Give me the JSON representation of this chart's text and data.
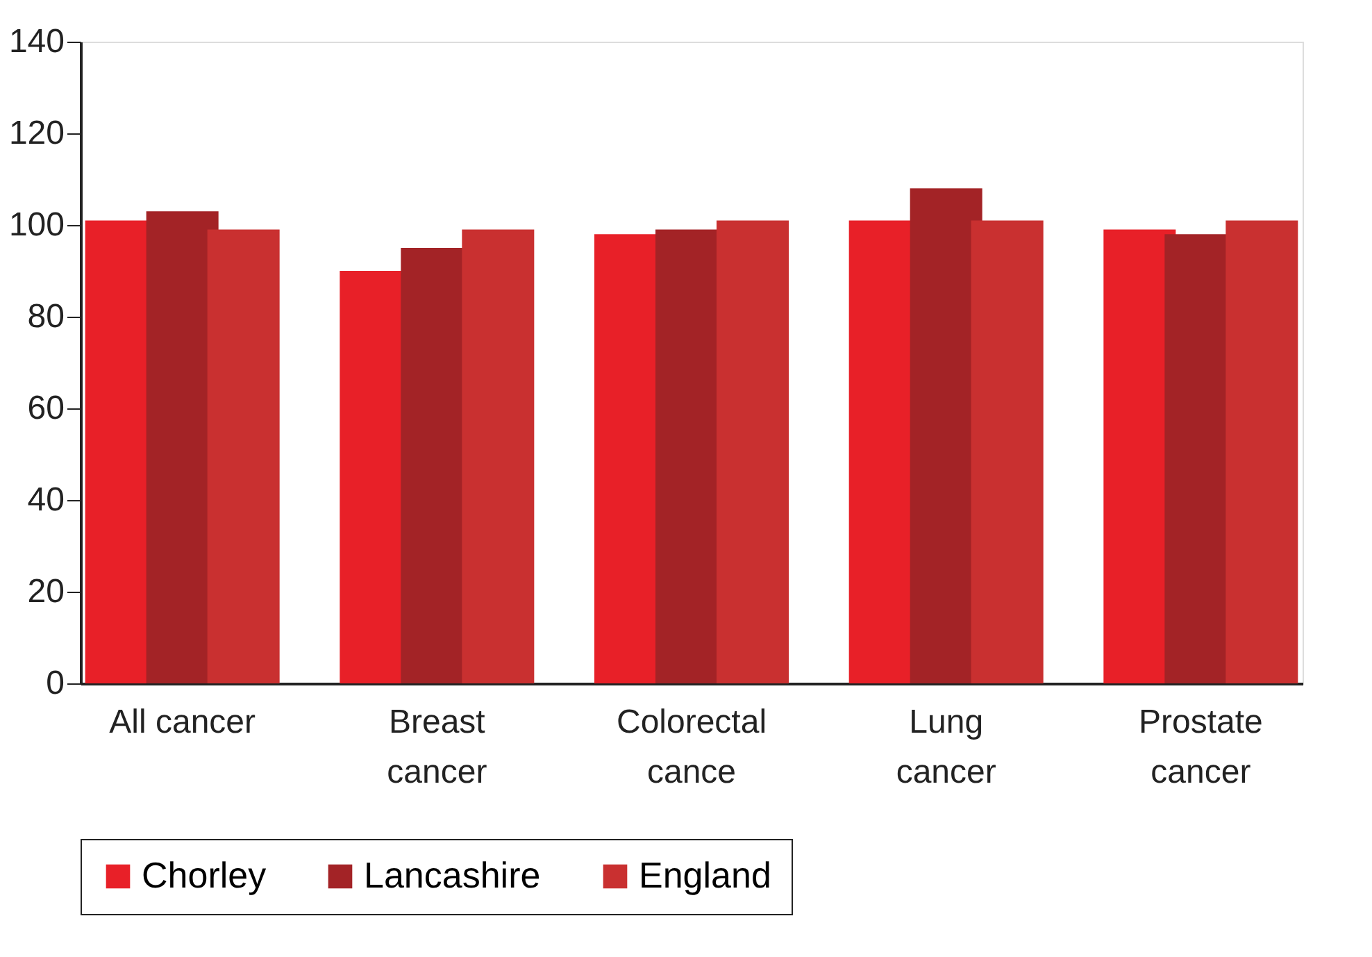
{
  "chart_data": {
    "type": "bar",
    "categories": [
      "All cancer",
      "Breast cancer",
      "Colorectal cance",
      "Lung cancer",
      "Prostate cancer"
    ],
    "series": [
      {
        "name": "Chorley",
        "color": "#e82028",
        "values": [
          101,
          90,
          98,
          101,
          99
        ]
      },
      {
        "name": "Lancashire",
        "color": "#a32326",
        "values": [
          103,
          95,
          99,
          108,
          98
        ]
      },
      {
        "name": "England",
        "color": "#c93030",
        "values": [
          99,
          99,
          101,
          101,
          101
        ]
      }
    ],
    "ylim": [
      0,
      140
    ],
    "yticks": [
      0,
      20,
      40,
      60,
      80,
      100,
      120,
      140
    ],
    "grid": false,
    "legend": "bottom"
  }
}
